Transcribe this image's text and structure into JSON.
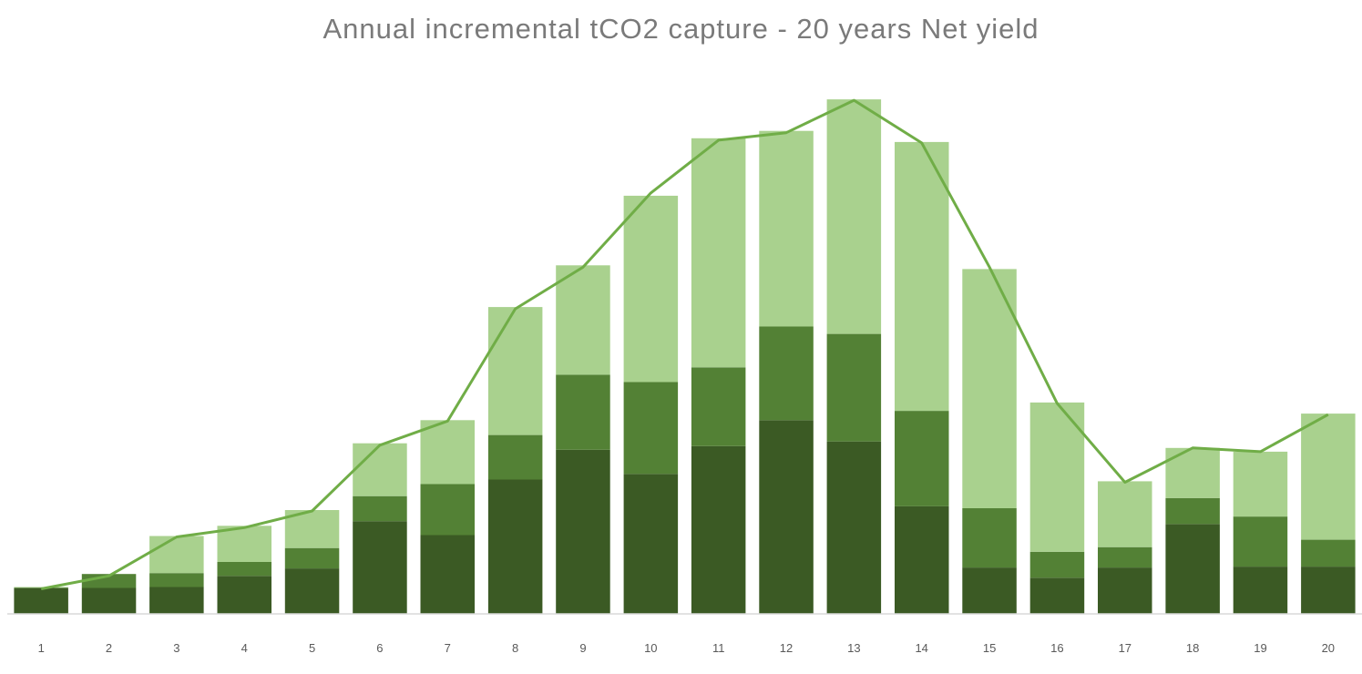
{
  "chart_data": {
    "type": "bar",
    "stacked": true,
    "title": "Annual incremental tCO2 capture - 20 years Net yield",
    "xlabel": "",
    "ylabel": "",
    "categories": [
      "1",
      "2",
      "3",
      "4",
      "5",
      "6",
      "7",
      "8",
      "9",
      "10",
      "11",
      "12",
      "13",
      "14",
      "15",
      "16",
      "17",
      "18",
      "19",
      "20"
    ],
    "ylim": [
      0,
      560
    ],
    "grid": false,
    "legend": "none",
    "series": [
      {
        "color": "#3b5a24",
        "values": [
          28,
          28,
          29,
          41,
          49,
          100,
          85,
          145,
          177,
          151,
          181,
          209,
          186,
          116,
          50,
          39,
          50,
          97,
          51,
          51
        ]
      },
      {
        "color": "#538135",
        "values": [
          0,
          15,
          15,
          15,
          22,
          27,
          55,
          48,
          81,
          99,
          85,
          101,
          116,
          103,
          64,
          28,
          22,
          28,
          54,
          29
        ]
      },
      {
        "color": "#a9d18e",
        "values": [
          1,
          0,
          40,
          39,
          41,
          57,
          69,
          138,
          118,
          201,
          247,
          211,
          253,
          290,
          258,
          161,
          71,
          54,
          70,
          136
        ]
      }
    ],
    "line": {
      "color": "#70ad47",
      "values": [
        27,
        41,
        83,
        93,
        111,
        182,
        208,
        329,
        374,
        454,
        511,
        519,
        554,
        508,
        374,
        227,
        142,
        179,
        175,
        215
      ]
    }
  }
}
